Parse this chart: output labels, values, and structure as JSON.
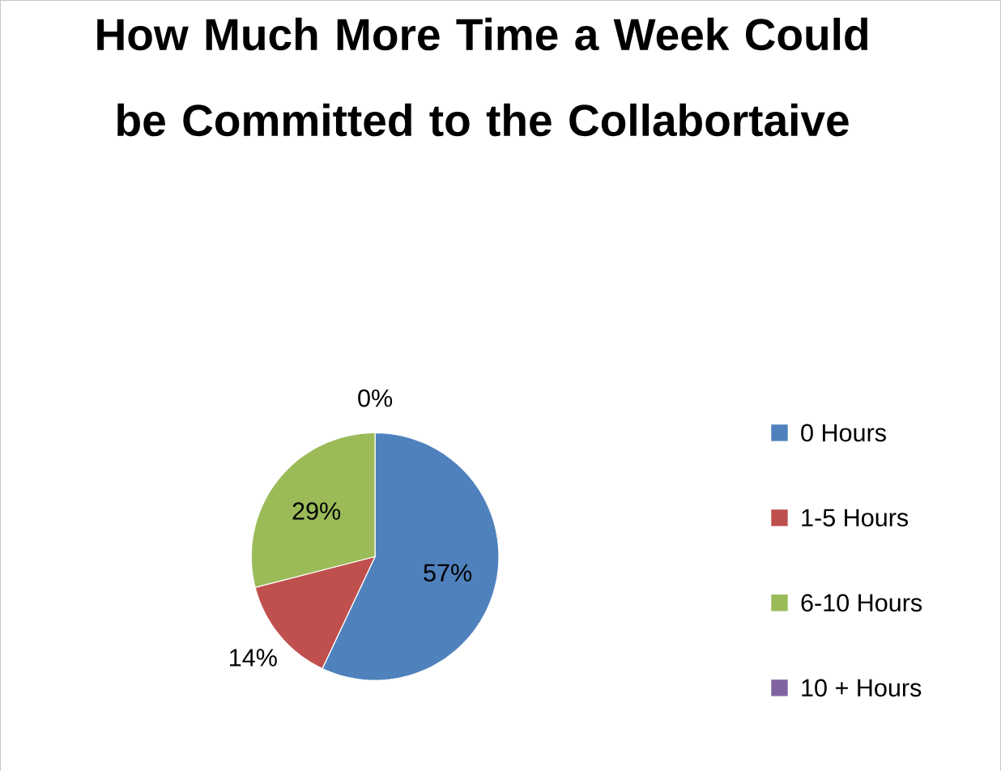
{
  "chart_data": {
    "type": "pie",
    "title": "How Much More Time a Week Could be Committed to the Collabortaive",
    "categories": [
      "0 Hours",
      "1-5 Hours",
      "6-10 Hours",
      "10 + Hours"
    ],
    "values": [
      57,
      14,
      29,
      0
    ],
    "value_labels": [
      "57%",
      "14%",
      "29%",
      "0%"
    ],
    "colors": [
      "#4f81bd",
      "#c0504d",
      "#9bbb59",
      "#8064a2"
    ],
    "legend": "right"
  }
}
